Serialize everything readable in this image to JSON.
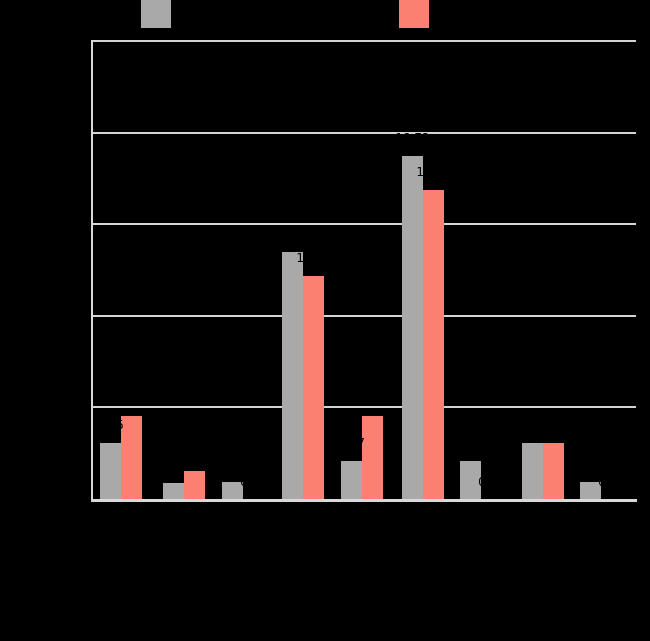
{
  "chart_data": {
    "type": "bar",
    "orientation": "vertical",
    "grouped": true,
    "num_groups": 9,
    "group_labels_visible": false,
    "axis_tick_labels_visible": false,
    "series": [
      {
        "key": "series-gray",
        "color": "#a9a9a9",
        "values": [
          3.05,
          0.89,
          0.93,
          13.48,
          2.07,
          18.72,
          2.09,
          3.04,
          0.91
        ]
      },
      {
        "key": "series-salmon",
        "color": "#fb8072",
        "values": [
          4.53,
          1.53,
          0.0,
          12.17,
          4.55,
          16.87,
          0.0,
          3.04,
          0.0
        ]
      }
    ],
    "value_labels_shown": true,
    "value_label_format": "2dp",
    "ylim": [
      0,
      25
    ],
    "ytick_step": 5,
    "grid": true,
    "legend_position": "top"
  },
  "legend": {
    "items": [
      {
        "key": "series-gray",
        "color": "#a9a9a9",
        "label": ""
      },
      {
        "key": "series-salmon",
        "color": "#fb8072",
        "label": ""
      }
    ]
  },
  "colors": {
    "background": "#000000",
    "gridline": "#d4d4d4",
    "axis": "#d9d9d9",
    "text": "#000000"
  }
}
